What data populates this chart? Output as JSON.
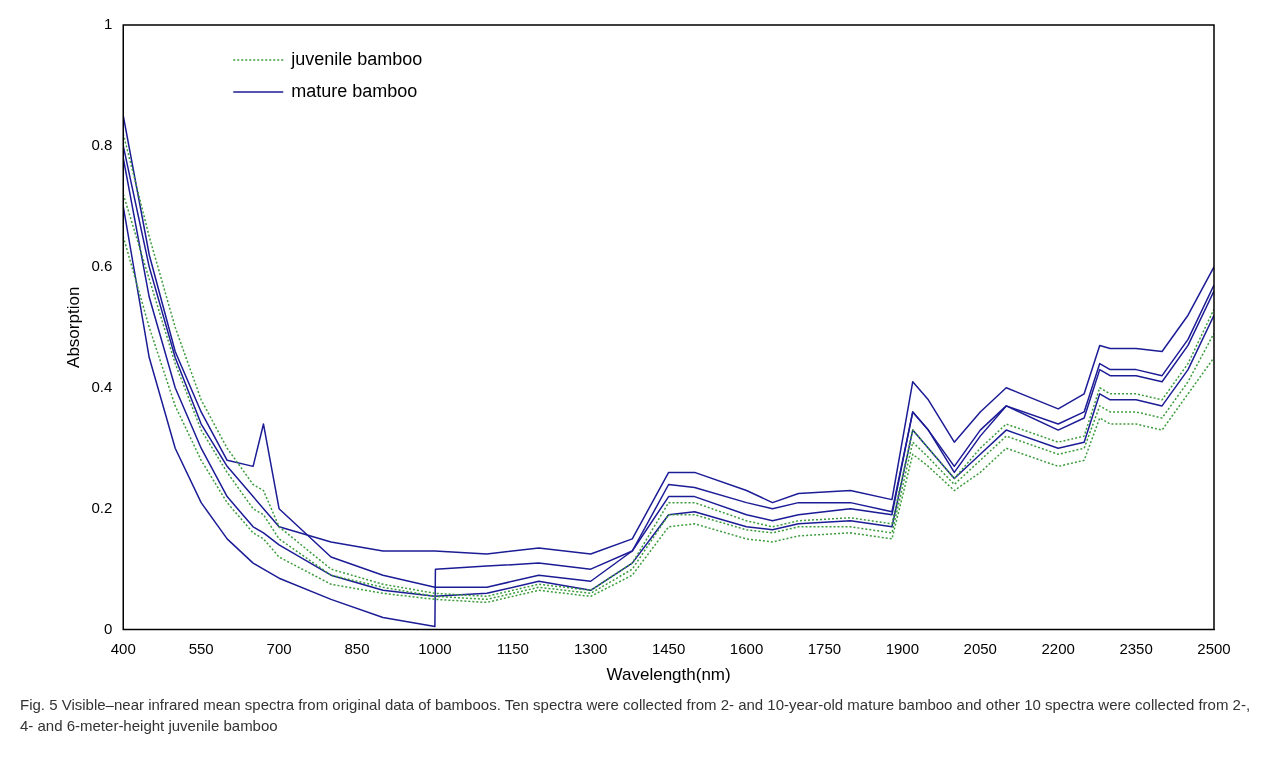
{
  "chart_data": {
    "type": "line",
    "xlabel": "Wavelength(nm)",
    "ylabel": "Absorption",
    "annotations": [
      "Fig. 5  Visible–near infrared mean spectra from original data of bamboos. Ten spectra were collected from 2- and 10-year-old mature bamboo and other 10 spectra were collected from 2-, 4- and 6-meter-height juvenile bamboo"
    ],
    "x": [
      400,
      450,
      500,
      550,
      600,
      650,
      670,
      700,
      800,
      900,
      1000,
      1100,
      1200,
      1300,
      1380,
      1450,
      1500,
      1600,
      1650,
      1700,
      1800,
      1880,
      1920,
      1950,
      2000,
      2050,
      2100,
      2200,
      2250,
      2280,
      2300,
      2350,
      2400,
      2450,
      2500
    ],
    "xlim": [
      400,
      2500
    ],
    "xticks": [
      400,
      550,
      700,
      850,
      1000,
      1150,
      1300,
      1450,
      1600,
      1750,
      1900,
      2050,
      2200,
      2350,
      2500
    ],
    "ylim": [
      0,
      1
    ],
    "yticks": [
      0,
      0.2,
      0.4,
      0.6,
      0.8,
      1
    ],
    "grid": false,
    "legend": "top left",
    "marker": "none",
    "series": [
      {
        "name": "juvenile bamboo",
        "color": "#3c9c3c",
        "line_style": "dotted",
        "values": [
          0.82,
          0.65,
          0.5,
          0.38,
          0.3,
          0.24,
          0.23,
          0.17,
          0.1,
          0.075,
          0.06,
          0.055,
          0.075,
          0.065,
          0.11,
          0.21,
          0.21,
          0.18,
          0.17,
          0.18,
          0.185,
          0.175,
          0.33,
          0.3,
          0.25,
          0.3,
          0.34,
          0.31,
          0.32,
          0.4,
          0.39,
          0.39,
          0.38,
          0.44,
          0.53
        ]
      },
      {
        "color": "#3c9c3c",
        "line_style": "dotted",
        "values": [
          0.65,
          0.5,
          0.37,
          0.28,
          0.21,
          0.16,
          0.15,
          0.12,
          0.075,
          0.06,
          0.05,
          0.045,
          0.065,
          0.055,
          0.09,
          0.17,
          0.175,
          0.15,
          0.145,
          0.155,
          0.16,
          0.15,
          0.29,
          0.27,
          0.23,
          0.26,
          0.3,
          0.27,
          0.28,
          0.35,
          0.34,
          0.34,
          0.33,
          0.39,
          0.45
        ]
      },
      {
        "color": "#3c9c3c",
        "line_style": "dotted",
        "values": [
          0.72,
          0.58,
          0.44,
          0.33,
          0.26,
          0.2,
          0.19,
          0.15,
          0.09,
          0.07,
          0.055,
          0.05,
          0.07,
          0.06,
          0.1,
          0.19,
          0.19,
          0.165,
          0.16,
          0.17,
          0.17,
          0.16,
          0.31,
          0.285,
          0.24,
          0.28,
          0.32,
          0.29,
          0.3,
          0.37,
          0.36,
          0.36,
          0.35,
          0.41,
          0.49
        ]
      },
      {
        "name": "mature bamboo",
        "color": "#1c1c96",
        "line_style": "solid",
        "values": [
          0.8,
          0.6,
          0.45,
          0.34,
          0.27,
          0.22,
          0.2,
          0.17,
          0.145,
          0.13,
          0.13,
          0.125,
          0.135,
          0.125,
          0.15,
          0.26,
          0.26,
          0.23,
          0.21,
          0.225,
          0.23,
          0.215,
          0.41,
          0.38,
          0.31,
          0.36,
          0.4,
          0.365,
          0.39,
          0.47,
          0.465,
          0.465,
          0.46,
          0.52,
          0.6
        ]
      },
      {
        "color": "#1c1c96",
        "line_style": "solid",
        "x": [
          400,
          450,
          500,
          550,
          600,
          650,
          670,
          700,
          800,
          900,
          1000,
          1001,
          1100,
          1200,
          1300,
          1380,
          1450,
          1500,
          1600,
          1650,
          1700,
          1800,
          1880,
          1920,
          1950,
          2000,
          2050,
          2100,
          2200,
          2250,
          2280,
          2300,
          2350,
          2400,
          2450,
          2500
        ],
        "values": [
          0.7,
          0.45,
          0.3,
          0.21,
          0.15,
          0.11,
          0.1,
          0.085,
          0.05,
          0.02,
          0.005,
          0.1,
          0.105,
          0.11,
          0.1,
          0.13,
          0.24,
          0.235,
          0.21,
          0.2,
          0.21,
          0.21,
          0.195,
          0.36,
          0.33,
          0.27,
          0.33,
          0.37,
          0.34,
          0.36,
          0.44,
          0.43,
          0.43,
          0.42,
          0.48,
          0.57
        ]
      },
      {
        "color": "#1c1c96",
        "line_style": "solid",
        "values": [
          0.85,
          0.62,
          0.46,
          0.36,
          0.28,
          0.27,
          0.34,
          0.2,
          0.12,
          0.09,
          0.07,
          0.07,
          0.09,
          0.08,
          0.13,
          0.22,
          0.22,
          0.19,
          0.18,
          0.19,
          0.2,
          0.19,
          0.36,
          0.33,
          0.26,
          0.32,
          0.37,
          0.33,
          0.35,
          0.43,
          0.42,
          0.42,
          0.41,
          0.47,
          0.56
        ]
      },
      {
        "color": "#1c1c96",
        "line_style": "solid",
        "values": [
          0.78,
          0.55,
          0.4,
          0.3,
          0.22,
          0.17,
          0.16,
          0.14,
          0.09,
          0.065,
          0.055,
          0.06,
          0.08,
          0.065,
          0.11,
          0.19,
          0.195,
          0.17,
          0.165,
          0.175,
          0.18,
          0.17,
          0.33,
          0.3,
          0.25,
          0.29,
          0.33,
          0.3,
          0.31,
          0.39,
          0.38,
          0.38,
          0.37,
          0.43,
          0.52
        ]
      }
    ]
  }
}
